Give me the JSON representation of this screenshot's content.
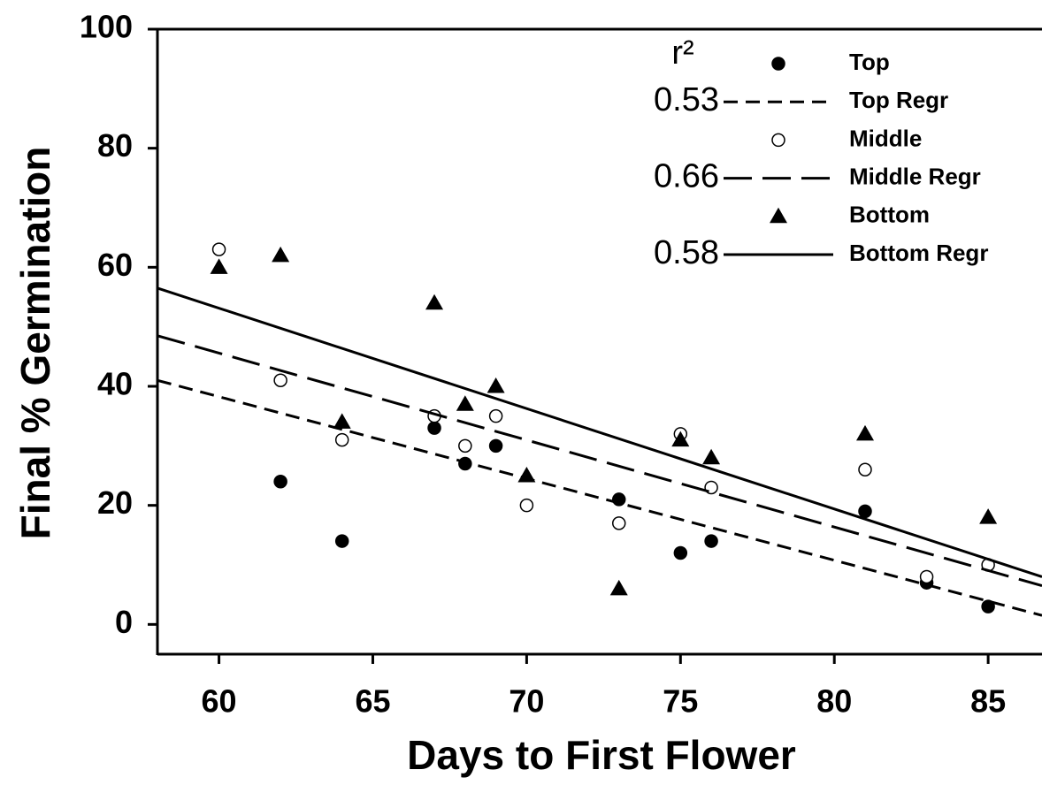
{
  "chart_data": {
    "type": "scatter",
    "x_label": "Days to First Flower",
    "y_label": "Final % Germination",
    "r2_label": "r²",
    "xlim": [
      58,
      86.75
    ],
    "ylim": [
      -5,
      100
    ],
    "xticks": [
      60,
      65,
      70,
      75,
      80,
      85
    ],
    "yticks": [
      0,
      20,
      40,
      60,
      80,
      100
    ],
    "series": [
      {
        "name": "Top",
        "type": "scatter",
        "marker": "filled-circle",
        "color": "#000000",
        "x": [
          62,
          64,
          67,
          68,
          69,
          73,
          75,
          76,
          81,
          83,
          85
        ],
        "values": [
          24,
          14,
          33,
          27,
          30,
          21,
          12,
          14,
          19,
          7,
          3
        ]
      },
      {
        "name": "Top Regr",
        "type": "line",
        "dash": "16,9",
        "color": "#000000",
        "r2": 0.53,
        "x": [
          58,
          86.75
        ],
        "values": [
          41,
          1.5
        ]
      },
      {
        "name": "Middle",
        "type": "scatter",
        "marker": "open-circle",
        "color": "#000000",
        "x": [
          60,
          62,
          64,
          67,
          68,
          69,
          70,
          73,
          75,
          76,
          81,
          83,
          85
        ],
        "values": [
          63,
          41,
          31,
          35,
          30,
          35,
          20,
          17,
          32,
          23,
          26,
          8,
          10
        ]
      },
      {
        "name": "Middle Regr",
        "type": "line",
        "dash": "32,12",
        "color": "#000000",
        "r2": 0.66,
        "x": [
          58,
          86.75
        ],
        "values": [
          48.5,
          6.5
        ]
      },
      {
        "name": "Bottom",
        "type": "scatter",
        "marker": "triangle",
        "color": "#000000",
        "x": [
          60,
          62,
          64,
          67,
          68,
          69,
          70,
          73,
          75,
          76,
          81,
          85
        ],
        "values": [
          60,
          62,
          34,
          54,
          37,
          40,
          25,
          6,
          31,
          28,
          32,
          18
        ]
      },
      {
        "name": "Bottom Regr",
        "type": "line",
        "dash": "none",
        "color": "#000000",
        "r2": 0.58,
        "x": [
          58,
          86.75
        ],
        "values": [
          56.5,
          8
        ]
      }
    ]
  }
}
